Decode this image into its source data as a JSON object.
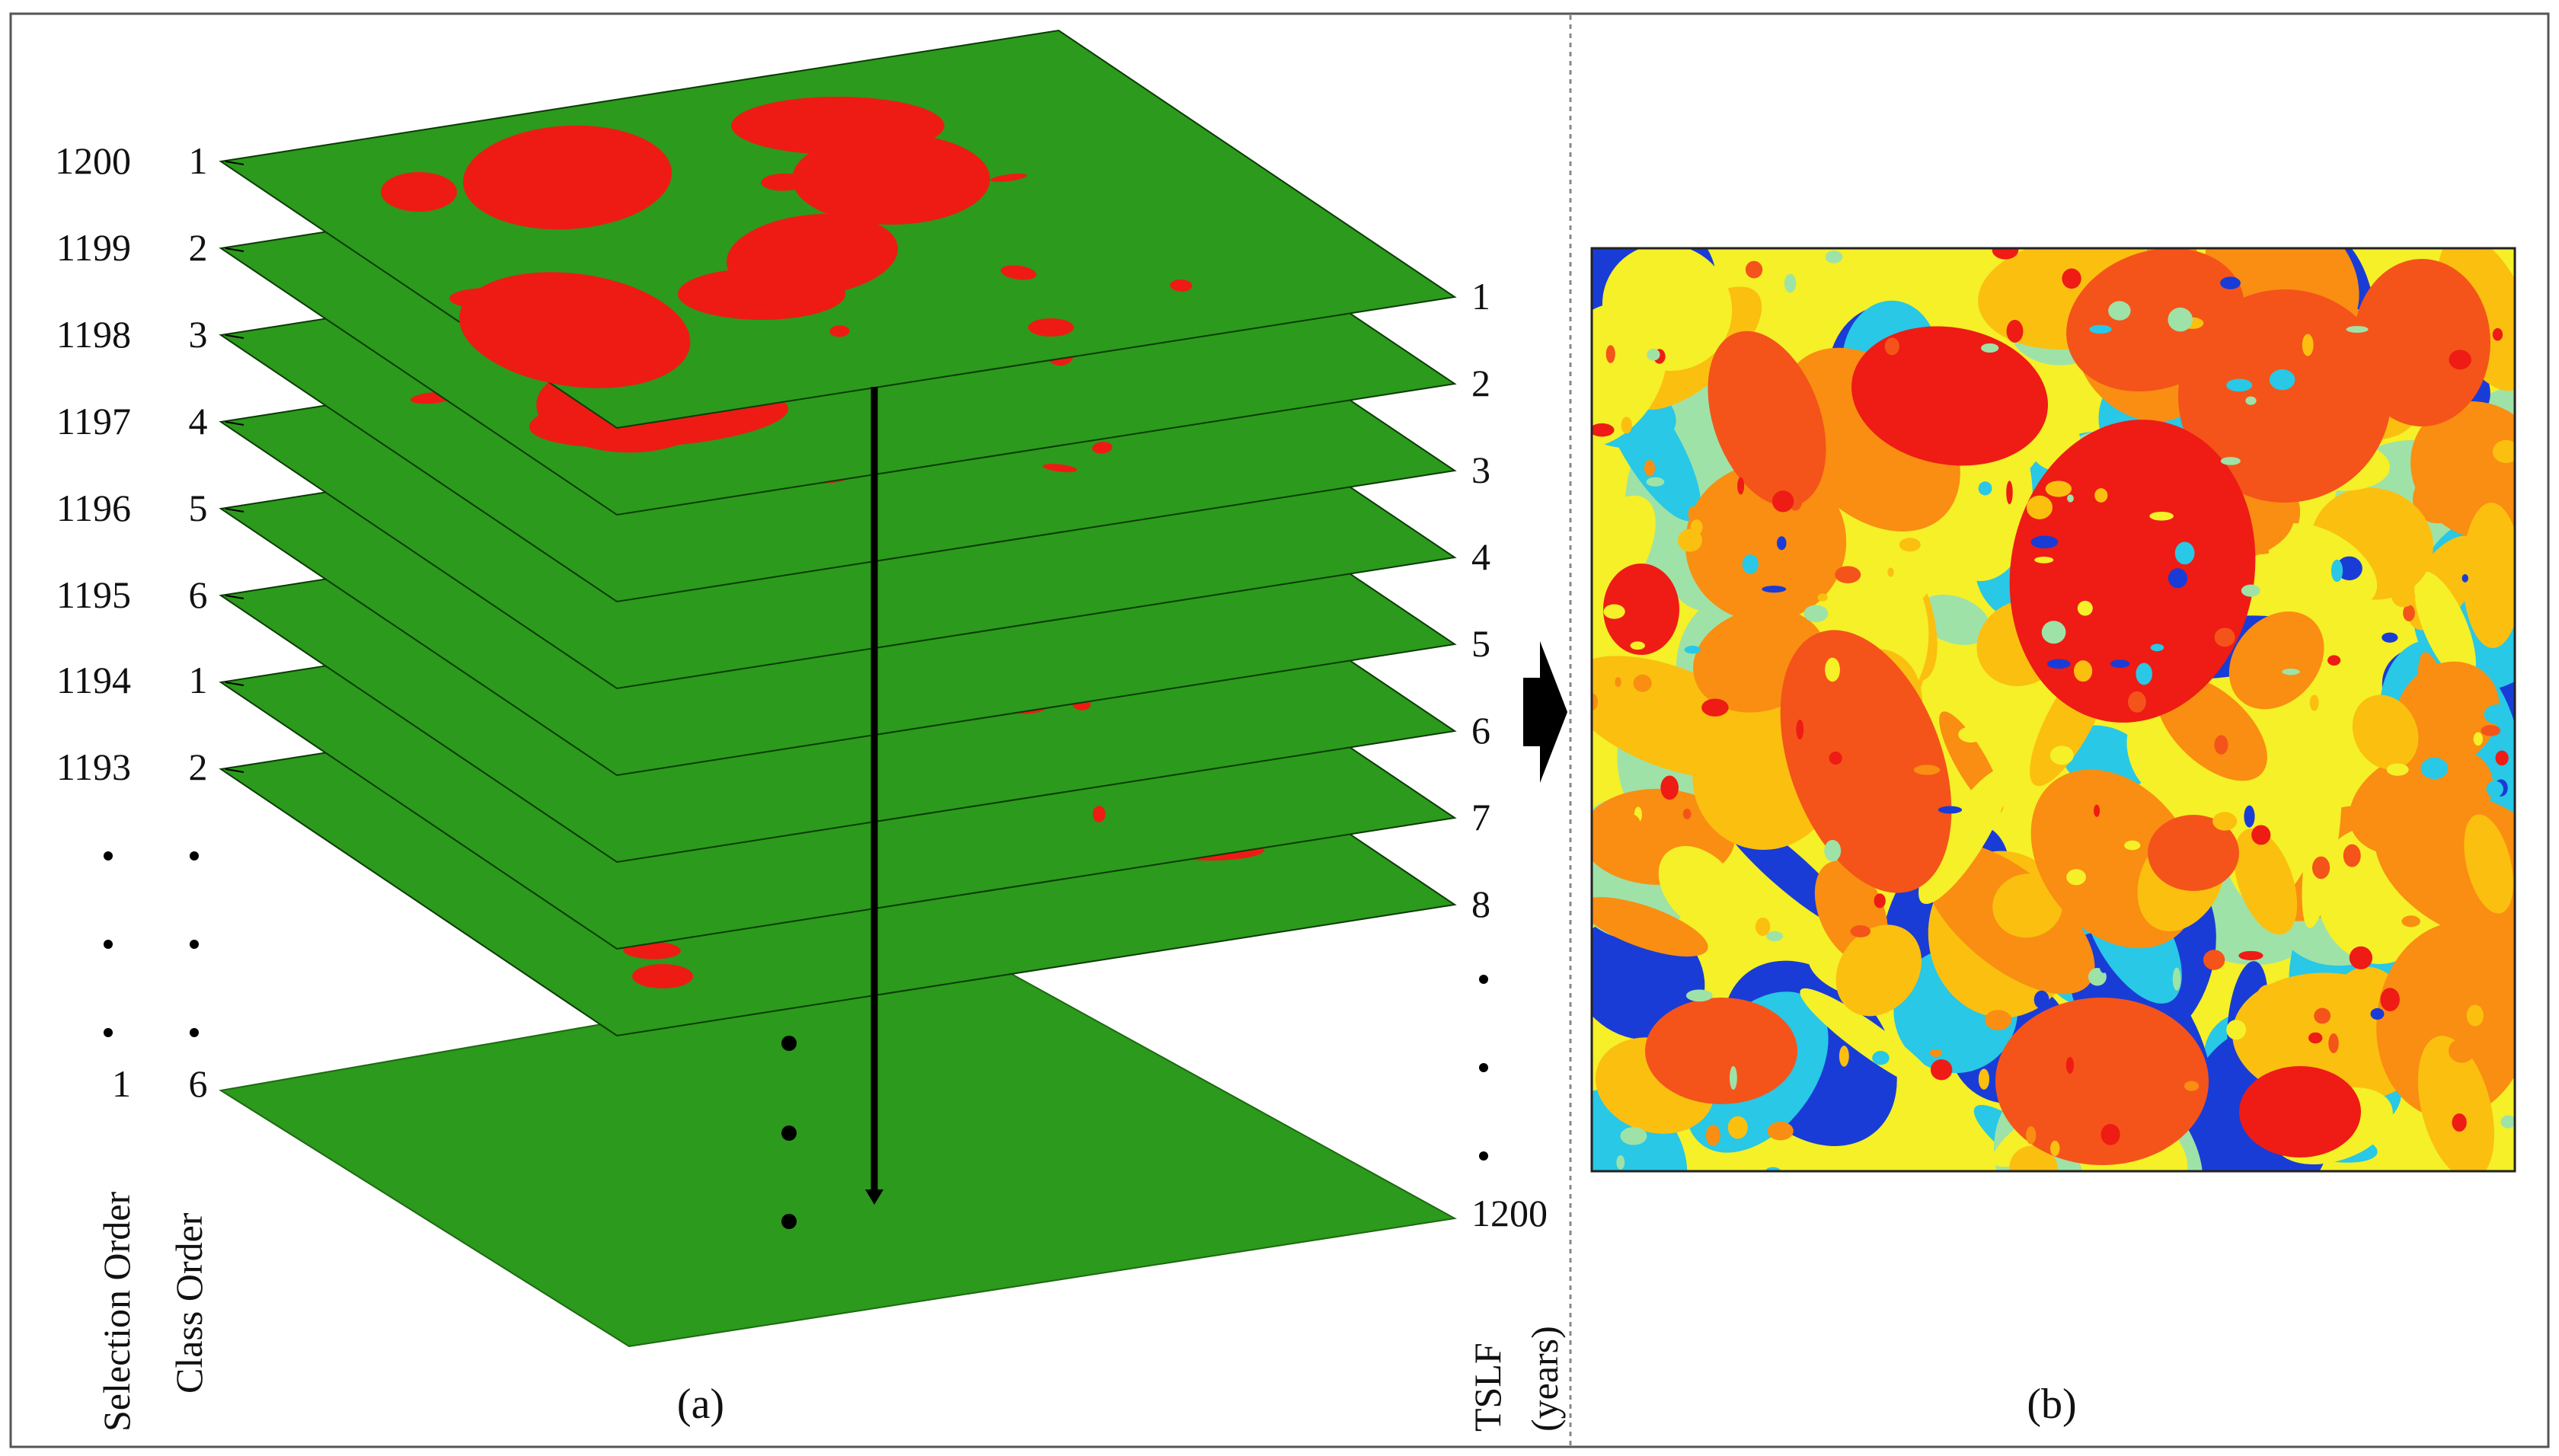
{
  "panel_a": {
    "caption": "(a)",
    "selection_order": {
      "label": "Selection Order",
      "values": [
        "1200",
        "1199",
        "1198",
        "1197",
        "1196",
        "1195",
        "1194",
        "1193",
        "1"
      ]
    },
    "class_order": {
      "label": "Class Order",
      "values": [
        "1",
        "2",
        "3",
        "4",
        "5",
        "6",
        "1",
        "2",
        "6"
      ]
    },
    "tslf": {
      "label": "TSLF",
      "unit": "(years)",
      "values": [
        "1",
        "2",
        "3",
        "4",
        "5",
        "6",
        "7",
        "8",
        "1200"
      ]
    },
    "layer_colors": {
      "unburned": "#2c9a1c",
      "burned": "#ee1b14"
    }
  },
  "panel_b": {
    "caption": "(b)",
    "colormap": [
      "#1a3cd6",
      "#28c8e6",
      "#9ee2a8",
      "#f5f028",
      "#fbbf10",
      "#f98e12",
      "#f4541a",
      "#ee1c14"
    ]
  }
}
